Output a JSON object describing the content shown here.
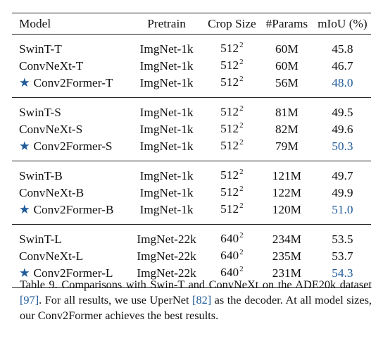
{
  "table": {
    "headers": [
      "Model",
      "Pretrain",
      "Crop Size",
      "#Params",
      "mIoU (%)"
    ],
    "star_symbol": "★",
    "groups": [
      [
        {
          "model": "SwinT-T",
          "pretrain": "ImgNet-1k",
          "crop": "512",
          "crop_exp": "2",
          "params": "60M",
          "miou": "45.8",
          "starred": false,
          "best": false
        },
        {
          "model": "ConvNeXt-T",
          "pretrain": "ImgNet-1k",
          "crop": "512",
          "crop_exp": "2",
          "params": "60M",
          "miou": "46.7",
          "starred": false,
          "best": false
        },
        {
          "model": "Conv2Former-T",
          "pretrain": "ImgNet-1k",
          "crop": "512",
          "crop_exp": "2",
          "params": "56M",
          "miou": "48.0",
          "starred": true,
          "best": true
        }
      ],
      [
        {
          "model": "SwinT-S",
          "pretrain": "ImgNet-1k",
          "crop": "512",
          "crop_exp": "2",
          "params": "81M",
          "miou": "49.5",
          "starred": false,
          "best": false
        },
        {
          "model": "ConvNeXt-S",
          "pretrain": "ImgNet-1k",
          "crop": "512",
          "crop_exp": "2",
          "params": "82M",
          "miou": "49.6",
          "starred": false,
          "best": false
        },
        {
          "model": "Conv2Former-S",
          "pretrain": "ImgNet-1k",
          "crop": "512",
          "crop_exp": "2",
          "params": "79M",
          "miou": "50.3",
          "starred": true,
          "best": true
        }
      ],
      [
        {
          "model": "SwinT-B",
          "pretrain": "ImgNet-1k",
          "crop": "512",
          "crop_exp": "2",
          "params": "121M",
          "miou": "49.7",
          "starred": false,
          "best": false
        },
        {
          "model": "ConvNeXt-B",
          "pretrain": "ImgNet-1k",
          "crop": "512",
          "crop_exp": "2",
          "params": "122M",
          "miou": "49.9",
          "starred": false,
          "best": false
        },
        {
          "model": "Conv2Former-B",
          "pretrain": "ImgNet-1k",
          "crop": "512",
          "crop_exp": "2",
          "params": "120M",
          "miou": "51.0",
          "starred": true,
          "best": true
        }
      ],
      [
        {
          "model": "SwinT-L",
          "pretrain": "ImgNet-22k",
          "crop": "640",
          "crop_exp": "2",
          "params": "234M",
          "miou": "53.5",
          "starred": false,
          "best": false
        },
        {
          "model": "ConvNeXt-L",
          "pretrain": "ImgNet-22k",
          "crop": "640",
          "crop_exp": "2",
          "params": "235M",
          "miou": "53.7",
          "starred": false,
          "best": false
        },
        {
          "model": "Conv2Former-L",
          "pretrain": "ImgNet-22k",
          "crop": "640",
          "crop_exp": "2",
          "params": "231M",
          "miou": "54.3",
          "starred": true,
          "best": true
        }
      ]
    ]
  },
  "caption": {
    "part1": "Table 9. Comparisons with Swin-T and ConvNeXt on the ADE20k dataset ",
    "ref1": "[97]",
    "part2": ". For all results, we use UperNet ",
    "ref2": "[82]",
    "part3": " as the decoder. At all model sizes, our Conv2Former achieves the best results."
  },
  "colors": {
    "accent": "#1f5a99",
    "rule": "#222222",
    "text": "#111111"
  }
}
